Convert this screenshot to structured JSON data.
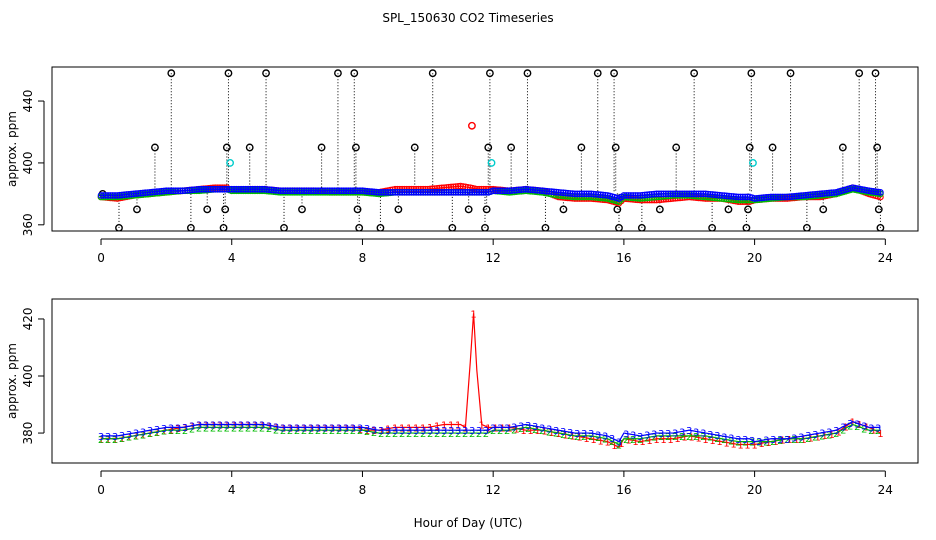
{
  "figure": {
    "title": "SPL_150630  CO2 Timeseries",
    "xlabel": "Hour of Day (UTC)"
  },
  "colors": {
    "frame": "#000000",
    "black_points": "#000000",
    "red_series": "#ff0000",
    "green_series": "#00bb00",
    "blue_series": "#0000ff",
    "cyan_points": "#00cccc"
  },
  "chart_data": [
    {
      "type": "scatter",
      "title": "",
      "xlabel": "",
      "ylabel": "approx. ppm",
      "xlim": [
        -1.5,
        25
      ],
      "ylim": [
        356,
        462
      ],
      "xticks": [
        0,
        4,
        8,
        12,
        16,
        20,
        24
      ],
      "yticks": [
        360,
        400,
        440
      ],
      "grid": false,
      "series": [
        {
          "color": "black",
          "symbol": "o",
          "x": [
            0.05,
            0.55,
            1.1,
            1.65,
            2.15,
            2.75,
            3.25,
            3.75,
            3.8,
            3.85,
            3.9,
            4.55,
            5.05,
            5.6,
            6.15,
            6.75,
            7.25,
            7.75,
            7.8,
            7.85,
            7.9,
            8.55,
            9.1,
            9.6,
            10.15,
            10.75,
            11.25,
            11.75,
            11.8,
            11.85,
            11.9,
            12.55,
            13.05,
            13.6,
            14.15,
            14.7,
            15.2,
            15.7,
            15.75,
            15.8,
            15.85,
            16.55,
            17.1,
            17.6,
            18.15,
            18.7,
            19.2,
            19.75,
            19.8,
            19.85,
            19.9,
            20.55,
            21.1,
            21.6,
            22.1,
            22.7,
            23.2,
            23.7,
            23.75,
            23.8,
            23.85
          ],
          "y": [
            380,
            358,
            370,
            410,
            458,
            358,
            370,
            358,
            370,
            410,
            458,
            410,
            458,
            358,
            370,
            410,
            458,
            458,
            410,
            370,
            358,
            358,
            370,
            410,
            458,
            358,
            370,
            358,
            370,
            410,
            458,
            410,
            458,
            358,
            370,
            410,
            458,
            458,
            410,
            370,
            358,
            358,
            370,
            410,
            458,
            358,
            370,
            358,
            370,
            410,
            458,
            410,
            458,
            358,
            370,
            410,
            458,
            458,
            410,
            370,
            358
          ]
        },
        {
          "color": "cyan",
          "symbol": "o",
          "x": [
            3.95,
            11.95,
            19.95
          ],
          "y": [
            400,
            400,
            400
          ]
        },
        {
          "color": "red",
          "symbol": "o",
          "x": [
            11.35
          ],
          "y": [
            424
          ]
        },
        {
          "name": "red",
          "color": "red",
          "x": [
            0.0,
            0.5,
            1.0,
            1.5,
            2.0,
            2.5,
            3.0,
            3.5,
            3.85,
            4.0,
            4.5,
            5.0,
            5.5,
            6.0,
            6.5,
            7.0,
            7.5,
            7.85,
            8.0,
            8.5,
            9.0,
            9.5,
            10.0,
            10.5,
            11.0,
            11.3,
            11.5,
            11.85,
            12.0,
            12.5,
            13.0,
            13.5,
            14.0,
            14.5,
            15.0,
            15.5,
            15.85,
            16.0,
            16.5,
            17.0,
            17.5,
            18.0,
            18.5,
            19.0,
            19.5,
            19.85,
            20.0,
            20.5,
            21.0,
            21.5,
            22.0,
            22.5,
            23.0,
            23.5,
            23.85
          ],
          "y": [
            378,
            377,
            379,
            380,
            381,
            382,
            383,
            384,
            384,
            382,
            383,
            383,
            382,
            382,
            382,
            381,
            381,
            381,
            381,
            381,
            383,
            383,
            383,
            384,
            385,
            384,
            383,
            383,
            383,
            382,
            383,
            382,
            378,
            377,
            377,
            376,
            374,
            377,
            376,
            376,
            377,
            378,
            377,
            377,
            375,
            375,
            376,
            377,
            377,
            378,
            378,
            380,
            384,
            380,
            378
          ]
        },
        {
          "name": "green",
          "color": "green",
          "x": [
            0.0,
            0.5,
            1.0,
            1.5,
            2.0,
            2.5,
            3.0,
            3.5,
            3.85,
            4.0,
            4.5,
            5.0,
            5.5,
            6.0,
            6.5,
            7.0,
            7.5,
            7.85,
            8.0,
            8.5,
            9.0,
            9.5,
            10.0,
            10.5,
            11.0,
            11.5,
            11.85,
            12.0,
            12.5,
            13.0,
            13.5,
            14.0,
            14.5,
            15.0,
            15.5,
            15.85,
            16.0,
            16.5,
            17.0,
            17.5,
            18.0,
            18.5,
            19.0,
            19.5,
            19.85,
            20.0,
            20.5,
            21.0,
            21.5,
            22.0,
            22.5,
            23.0,
            23.5,
            23.85
          ],
          "y": [
            378,
            378,
            379,
            380,
            381,
            382,
            382,
            383,
            383,
            382,
            382,
            382,
            381,
            381,
            381,
            381,
            381,
            381,
            381,
            380,
            381,
            381,
            381,
            381,
            381,
            381,
            381,
            382,
            381,
            382,
            381,
            379,
            378,
            378,
            377,
            375,
            378,
            377,
            378,
            379,
            379,
            378,
            377,
            376,
            376,
            376,
            377,
            378,
            378,
            379,
            380,
            383,
            381,
            380
          ]
        },
        {
          "name": "blue",
          "color": "blue",
          "x": [
            0.0,
            0.5,
            1.0,
            1.5,
            2.0,
            2.5,
            3.0,
            3.5,
            3.85,
            4.0,
            4.5,
            5.0,
            5.5,
            6.0,
            6.5,
            7.0,
            7.5,
            7.85,
            8.0,
            8.5,
            9.0,
            9.5,
            10.0,
            10.5,
            11.0,
            11.5,
            11.85,
            12.0,
            12.5,
            13.0,
            13.5,
            14.0,
            14.5,
            15.0,
            15.5,
            15.85,
            16.0,
            16.5,
            17.0,
            17.5,
            18.0,
            18.5,
            19.0,
            19.5,
            19.85,
            20.0,
            20.5,
            21.0,
            21.5,
            22.0,
            22.5,
            23.0,
            23.5,
            23.85
          ],
          "y": [
            379,
            379,
            380,
            381,
            382,
            382,
            383,
            383,
            383,
            383,
            383,
            383,
            382,
            382,
            382,
            382,
            382,
            382,
            382,
            381,
            381,
            381,
            381,
            381,
            381,
            381,
            381,
            382,
            382,
            383,
            382,
            381,
            380,
            380,
            379,
            377,
            379,
            379,
            380,
            380,
            380,
            380,
            379,
            378,
            378,
            377,
            378,
            378,
            379,
            380,
            381,
            384,
            382,
            381
          ]
        }
      ]
    },
    {
      "type": "line",
      "title": "",
      "xlabel": "Hour of Day (UTC)",
      "ylabel": "approx. ppm",
      "xlim": [
        -1.5,
        25
      ],
      "ylim": [
        369.5,
        427
      ],
      "xticks": [
        0,
        4,
        8,
        12,
        16,
        20,
        24
      ],
      "yticks": [
        380,
        400,
        420
      ],
      "grid": false,
      "series": [
        {
          "name": "1",
          "color": "red",
          "x": [
            0.0,
            0.5,
            1.0,
            1.5,
            2.0,
            2.5,
            3.0,
            3.5,
            3.85,
            4.0,
            4.5,
            5.0,
            5.5,
            6.0,
            6.5,
            7.0,
            7.5,
            7.85,
            8.0,
            8.5,
            9.0,
            9.5,
            10.0,
            10.5,
            11.0,
            11.15,
            11.3,
            11.4,
            11.5,
            11.65,
            11.85,
            12.0,
            12.5,
            13.0,
            13.5,
            14.0,
            14.5,
            15.0,
            15.5,
            15.85,
            16.0,
            16.5,
            17.0,
            17.5,
            18.0,
            18.5,
            19.0,
            19.5,
            19.85,
            20.0,
            20.5,
            21.0,
            21.5,
            22.0,
            22.5,
            23.0,
            23.5,
            23.85
          ],
          "y": [
            378,
            378,
            379,
            380,
            381,
            382,
            383,
            383,
            383,
            383,
            383,
            383,
            382,
            382,
            382,
            382,
            382,
            382,
            381,
            381,
            382,
            382,
            382,
            383,
            383,
            382,
            405,
            422,
            402,
            383,
            382,
            382,
            382,
            381,
            381,
            380,
            379,
            378,
            377,
            375,
            378,
            377,
            378,
            378,
            379,
            378,
            377,
            376,
            376,
            376,
            377,
            378,
            378,
            379,
            380,
            384,
            382,
            380
          ]
        },
        {
          "name": "2",
          "color": "green",
          "x": [
            0.0,
            0.5,
            1.0,
            1.5,
            2.0,
            2.5,
            3.0,
            3.5,
            3.85,
            4.0,
            4.5,
            5.0,
            5.5,
            6.0,
            6.5,
            7.0,
            7.5,
            7.85,
            8.0,
            8.5,
            9.0,
            9.5,
            10.0,
            10.5,
            11.0,
            11.5,
            11.85,
            12.0,
            12.5,
            13.0,
            13.5,
            14.0,
            14.5,
            15.0,
            15.5,
            15.85,
            16.0,
            16.5,
            17.0,
            17.5,
            18.0,
            18.5,
            19.0,
            19.5,
            19.85,
            20.0,
            20.5,
            21.0,
            21.5,
            22.0,
            22.5,
            23.0,
            23.5,
            23.85
          ],
          "y": [
            378,
            378,
            379,
            380,
            381,
            381,
            382,
            382,
            382,
            382,
            382,
            382,
            381,
            381,
            381,
            381,
            381,
            381,
            381,
            380,
            380,
            380,
            380,
            380,
            380,
            380,
            380,
            381,
            381,
            382,
            381,
            380,
            379,
            379,
            378,
            376,
            378,
            378,
            379,
            379,
            379,
            379,
            378,
            377,
            377,
            377,
            377,
            378,
            378,
            379,
            380,
            383,
            381,
            381
          ]
        },
        {
          "name": "3",
          "color": "blue",
          "x": [
            0.0,
            0.5,
            1.0,
            1.5,
            2.0,
            2.5,
            3.0,
            3.5,
            3.85,
            4.0,
            4.5,
            5.0,
            5.5,
            6.0,
            6.5,
            7.0,
            7.5,
            7.85,
            8.0,
            8.5,
            9.0,
            9.5,
            10.0,
            10.5,
            11.0,
            11.5,
            11.85,
            12.0,
            12.5,
            13.0,
            13.5,
            14.0,
            14.5,
            15.0,
            15.5,
            15.85,
            16.0,
            16.5,
            17.0,
            17.5,
            18.0,
            18.5,
            19.0,
            19.5,
            19.85,
            20.0,
            20.5,
            21.0,
            21.5,
            22.0,
            22.5,
            23.0,
            23.5,
            23.85
          ],
          "y": [
            379,
            379,
            380,
            381,
            382,
            382,
            383,
            383,
            383,
            383,
            383,
            383,
            382,
            382,
            382,
            382,
            382,
            382,
            382,
            381,
            381,
            381,
            381,
            381,
            381,
            381,
            381,
            382,
            382,
            383,
            382,
            381,
            380,
            380,
            379,
            377,
            380,
            379,
            380,
            380,
            381,
            380,
            379,
            378,
            378,
            377,
            378,
            378,
            379,
            380,
            381,
            384,
            382,
            382
          ]
        }
      ]
    }
  ]
}
